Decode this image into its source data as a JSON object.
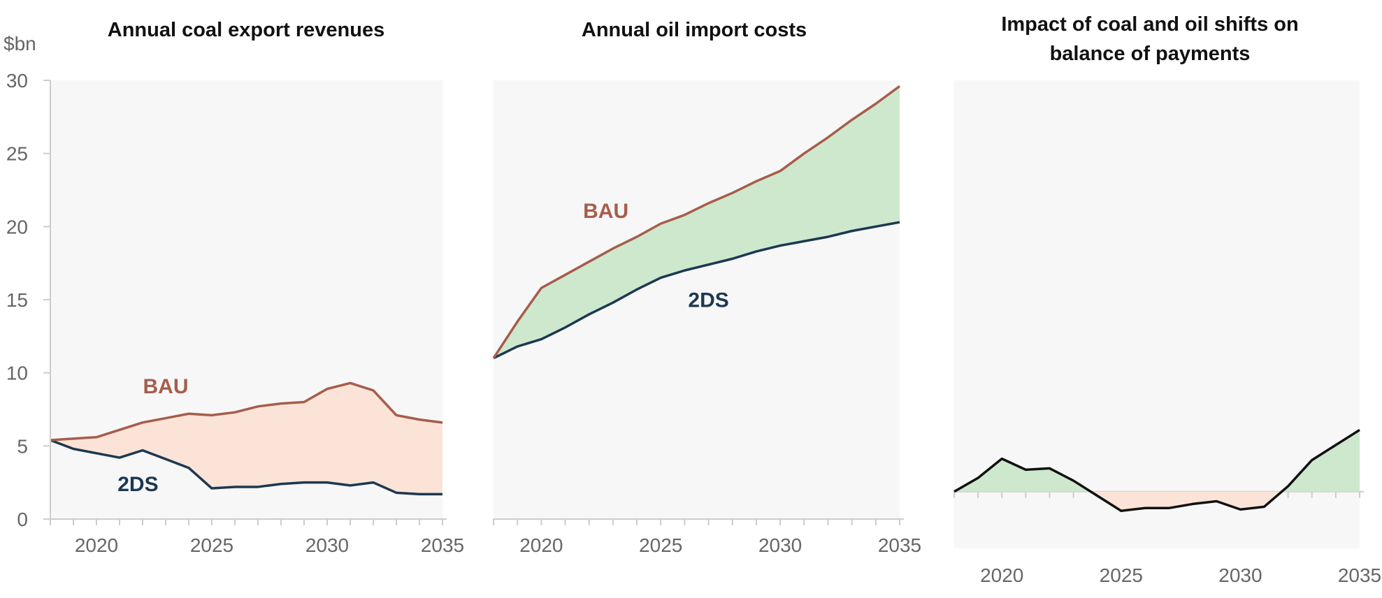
{
  "colors": {
    "bau": "#a65d4b",
    "twods": "#1c3852",
    "positive_fill": "#cde8cd",
    "negative_fill": "#fce3d7",
    "plot_bg": "#f7f7f7",
    "axis": "#cccccc",
    "impact_line": "#111111"
  },
  "chart_data": [
    {
      "type": "area",
      "title": "Annual coal export revenues",
      "unit_label": "$bn",
      "ylim": [
        0,
        30
      ],
      "yticks": [
        "0",
        "5",
        "10",
        "15",
        "20",
        "25",
        "30"
      ],
      "xlim": [
        2018,
        2035
      ],
      "xticks": [
        "2020",
        "2025",
        "2030",
        "2035"
      ],
      "x": [
        2018,
        2019,
        2020,
        2021,
        2022,
        2023,
        2024,
        2025,
        2026,
        2027,
        2028,
        2029,
        2030,
        2031,
        2032,
        2033,
        2034,
        2035
      ],
      "series": [
        {
          "name": "BAU",
          "values": [
            5.4,
            5.5,
            5.6,
            6.1,
            6.6,
            6.9,
            7.2,
            7.1,
            7.3,
            7.7,
            7.9,
            8.0,
            8.9,
            9.3,
            8.8,
            7.1,
            6.8,
            6.6
          ]
        },
        {
          "name": "2DS",
          "values": [
            5.4,
            4.8,
            4.5,
            4.2,
            4.7,
            4.1,
            3.5,
            2.1,
            2.2,
            2.2,
            2.4,
            2.5,
            2.5,
            2.3,
            2.5,
            1.8,
            1.7,
            1.7
          ]
        }
      ],
      "grid": false
    },
    {
      "type": "area",
      "title": "Annual oil import costs",
      "ylim": [
        0,
        30
      ],
      "xlim": [
        2018,
        2035
      ],
      "xticks": [
        "2020",
        "2025",
        "2030",
        "2035"
      ],
      "x": [
        2018,
        2019,
        2020,
        2021,
        2022,
        2023,
        2024,
        2025,
        2026,
        2027,
        2028,
        2029,
        2030,
        2031,
        2032,
        2033,
        2034,
        2035
      ],
      "series": [
        {
          "name": "BAU",
          "values": [
            11.0,
            13.5,
            15.8,
            16.7,
            17.6,
            18.5,
            19.3,
            20.2,
            20.8,
            21.6,
            22.3,
            23.1,
            23.8,
            25.0,
            26.1,
            27.3,
            28.4,
            29.6
          ]
        },
        {
          "name": "2DS",
          "values": [
            11.0,
            11.8,
            12.3,
            13.1,
            14.0,
            14.8,
            15.7,
            16.5,
            17.0,
            17.4,
            17.8,
            18.3,
            18.7,
            19.0,
            19.3,
            19.7,
            20.0,
            20.3
          ]
        }
      ],
      "grid": false
    },
    {
      "type": "area",
      "title": "Impact of coal and oil shifts on balance of payments",
      "title_lines": [
        "Impact of coal and oil shifts on",
        "balance of payments"
      ],
      "ylim": [
        -2,
        30
      ],
      "xlim": [
        2018,
        2035
      ],
      "xticks": [
        "2020",
        "2025",
        "2030",
        "2035"
      ],
      "x": [
        2018,
        2019,
        2020,
        2021,
        2022,
        2023,
        2024,
        2025,
        2026,
        2027,
        2028,
        2029,
        2030,
        2031,
        2032,
        2033,
        2034,
        2035
      ],
      "series": [
        {
          "values": [
            0.0,
            1.0,
            2.4,
            1.6,
            1.7,
            0.8,
            -0.3,
            -1.4,
            -1.2,
            -1.2,
            -0.9,
            -0.7,
            -1.3,
            -1.1,
            0.4,
            2.3,
            3.4,
            4.5
          ]
        }
      ],
      "grid": false
    }
  ]
}
